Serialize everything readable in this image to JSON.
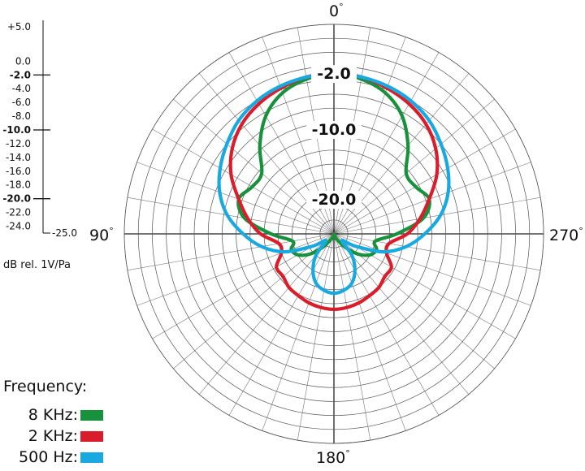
{
  "chart_data": {
    "type": "polar",
    "angle_labels": {
      "top": "0",
      "left": "90",
      "right": "270",
      "bottom": "180"
    },
    "degree_symbol": "°",
    "ring_labels": [
      "-2.0",
      "-10.0",
      "-20.0"
    ],
    "scale": {
      "max": 5.0,
      "min": -25.0,
      "ticks": [
        "+5.0",
        "0.0",
        "-2.0",
        "-4.0",
        "-6.0",
        "-8.0",
        "-10.0",
        "-12.0",
        "-14.0",
        "-16.0",
        "-18.0",
        "-20.0",
        "-22.0",
        "-24.0",
        "-25.0"
      ],
      "bold_ticks": [
        "-2.0",
        "-10.0",
        "-20.0"
      ],
      "unit_label": "dB rel. 1V/Pa"
    },
    "legend_title": "Frequency:",
    "series": [
      {
        "name": "8 KHz",
        "color": "#17913b",
        "points": [
          [
            0,
            -2.0
          ],
          [
            10,
            -2.5
          ],
          [
            20,
            -3.5
          ],
          [
            30,
            -5.5
          ],
          [
            40,
            -8.5
          ],
          [
            50,
            -11.5
          ],
          [
            60,
            -11.5
          ],
          [
            70,
            -10.5
          ],
          [
            80,
            -12.0
          ],
          [
            90,
            -16.0
          ],
          [
            100,
            -19.0
          ],
          [
            110,
            -18.5
          ],
          [
            120,
            -19.0
          ],
          [
            130,
            -20.5
          ],
          [
            140,
            -22.5
          ],
          [
            150,
            -24.0
          ],
          [
            160,
            -24.5
          ],
          [
            170,
            -24.8
          ],
          [
            180,
            -25.0
          ],
          [
            190,
            -24.8
          ],
          [
            200,
            -24.5
          ],
          [
            210,
            -24.0
          ],
          [
            220,
            -22.5
          ],
          [
            230,
            -20.5
          ],
          [
            240,
            -19.0
          ],
          [
            250,
            -18.5
          ],
          [
            260,
            -19.0
          ],
          [
            270,
            -16.0
          ],
          [
            280,
            -12.0
          ],
          [
            290,
            -10.5
          ],
          [
            300,
            -11.5
          ],
          [
            310,
            -11.5
          ],
          [
            320,
            -8.5
          ],
          [
            330,
            -5.5
          ],
          [
            340,
            -3.5
          ],
          [
            350,
            -2.5
          ]
        ]
      },
      {
        "name": "2 KHz",
        "color": "#da1d2b",
        "points": [
          [
            0,
            -2.0
          ],
          [
            10,
            -2.2
          ],
          [
            20,
            -2.8
          ],
          [
            30,
            -3.5
          ],
          [
            40,
            -4.5
          ],
          [
            50,
            -6.0
          ],
          [
            60,
            -8.0
          ],
          [
            70,
            -10.5
          ],
          [
            80,
            -12.5
          ],
          [
            90,
            -14.5
          ],
          [
            100,
            -17.0
          ],
          [
            110,
            -17.0
          ],
          [
            120,
            -15.5
          ],
          [
            130,
            -15.5
          ],
          [
            140,
            -15.0
          ],
          [
            150,
            -14.8
          ],
          [
            160,
            -14.5
          ],
          [
            170,
            -14.3
          ],
          [
            180,
            -14.2
          ],
          [
            190,
            -14.3
          ],
          [
            200,
            -14.5
          ],
          [
            210,
            -14.8
          ],
          [
            220,
            -15.0
          ],
          [
            230,
            -15.5
          ],
          [
            240,
            -15.5
          ],
          [
            250,
            -17.0
          ],
          [
            260,
            -17.0
          ],
          [
            270,
            -14.5
          ],
          [
            280,
            -12.5
          ],
          [
            290,
            -10.5
          ],
          [
            300,
            -8.0
          ],
          [
            310,
            -6.0
          ],
          [
            320,
            -4.5
          ],
          [
            330,
            -3.5
          ],
          [
            340,
            -2.8
          ],
          [
            350,
            -2.2
          ]
        ]
      },
      {
        "name": "500 Hz",
        "color": "#19a9e1",
        "points": [
          [
            0,
            -2.0
          ],
          [
            10,
            -2.2
          ],
          [
            20,
            -2.5
          ],
          [
            30,
            -3.0
          ],
          [
            40,
            -3.8
          ],
          [
            50,
            -5.0
          ],
          [
            60,
            -6.2
          ],
          [
            70,
            -7.6
          ],
          [
            80,
            -9.5
          ],
          [
            90,
            -12.0
          ],
          [
            100,
            -14.5
          ],
          [
            110,
            -17.5
          ],
          [
            120,
            -21.5
          ],
          [
            130,
            -23.5
          ],
          [
            140,
            -21.0
          ],
          [
            150,
            -19.0
          ],
          [
            160,
            -17.5
          ],
          [
            170,
            -16.8
          ],
          [
            180,
            -16.5
          ],
          [
            190,
            -16.8
          ],
          [
            200,
            -17.5
          ],
          [
            210,
            -19.0
          ],
          [
            220,
            -21.0
          ],
          [
            230,
            -23.5
          ],
          [
            240,
            -21.5
          ],
          [
            250,
            -17.5
          ],
          [
            260,
            -14.5
          ],
          [
            270,
            -12.0
          ],
          [
            280,
            -9.5
          ],
          [
            290,
            -7.6
          ],
          [
            300,
            -6.2
          ],
          [
            310,
            -5.0
          ],
          [
            320,
            -3.8
          ],
          [
            330,
            -3.0
          ],
          [
            340,
            -2.5
          ],
          [
            350,
            -2.2
          ]
        ]
      }
    ]
  }
}
